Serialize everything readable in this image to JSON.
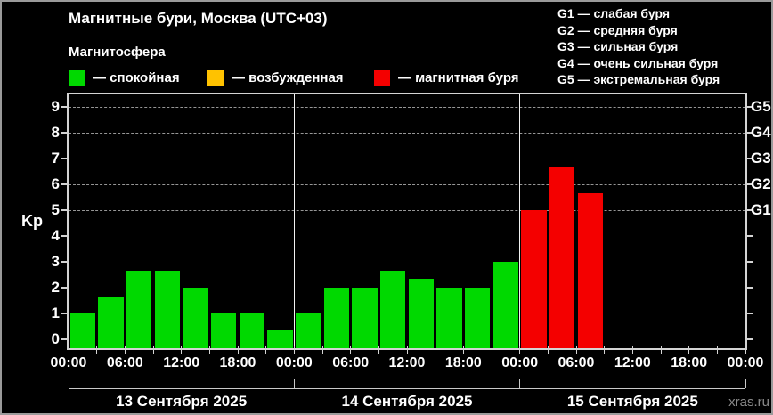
{
  "header": {
    "title": "Магнитные бури, Москва (UTC+03)",
    "subtitle": "Магнитосфера"
  },
  "legend": {
    "items": [
      {
        "label": "— спокойная",
        "color": "green"
      },
      {
        "label": "— возбужденная",
        "color": "orange"
      },
      {
        "label": "— магнитная буря",
        "color": "red"
      }
    ]
  },
  "storm_scale": [
    "G1 — слабая буря",
    "G2 — средняя буря",
    "G3 — сильная буря",
    "G4 — очень сильная буря",
    "G5 — экстремальная буря"
  ],
  "palette": {
    "green": "#00d900",
    "orange": "#ffc200",
    "red": "#f40000",
    "background": "#000000",
    "text": "#ffffff",
    "grid": "#969696",
    "axis": "#d4d4d4",
    "watermark": "#8a8a8a"
  },
  "watermark": "xras.ru",
  "chart_data": {
    "type": "bar",
    "title": "Магнитные бури, Москва (UTC+03)",
    "ylabel": "Kp",
    "ylim": [
      0,
      9
    ],
    "yticks": [
      0,
      1,
      2,
      3,
      4,
      5,
      6,
      7,
      8,
      9
    ],
    "gridlines_at": [
      5,
      6,
      7,
      8,
      9
    ],
    "grid": "dashed, only at storm levels G1–G5",
    "legend_position": "top-left",
    "right_axis": [
      {
        "label": "G1",
        "value": 5
      },
      {
        "label": "G2",
        "value": 6
      },
      {
        "label": "G3",
        "value": 7
      },
      {
        "label": "G4",
        "value": 8
      },
      {
        "label": "G5",
        "value": 9
      }
    ],
    "hours_per_bar": 3,
    "x_tick_labels": [
      "00:00",
      "06:00",
      "12:00",
      "18:00"
    ],
    "x_final_label": "00:00",
    "days": [
      {
        "date_label": "13 Сентября 2025",
        "bars": [
          {
            "value": 1,
            "color": "green"
          },
          {
            "value": 1.67,
            "color": "green"
          },
          {
            "value": 2.67,
            "color": "green"
          },
          {
            "value": 2.67,
            "color": "green"
          },
          {
            "value": 2,
            "color": "green"
          },
          {
            "value": 1,
            "color": "green"
          },
          {
            "value": 1,
            "color": "green"
          },
          {
            "value": 0.33,
            "color": "green"
          }
        ]
      },
      {
        "date_label": "14 Сентября 2025",
        "bars": [
          {
            "value": 1,
            "color": "green"
          },
          {
            "value": 2,
            "color": "green"
          },
          {
            "value": 2,
            "color": "green"
          },
          {
            "value": 2.67,
            "color": "green"
          },
          {
            "value": 2.33,
            "color": "green"
          },
          {
            "value": 2,
            "color": "green"
          },
          {
            "value": 2,
            "color": "green"
          },
          {
            "value": 3,
            "color": "green"
          }
        ]
      },
      {
        "date_label": "15 Сентября 2025",
        "bars": [
          {
            "value": 5,
            "color": "red"
          },
          {
            "value": 6.67,
            "color": "red"
          },
          {
            "value": 5.67,
            "color": "red"
          }
        ]
      }
    ]
  }
}
